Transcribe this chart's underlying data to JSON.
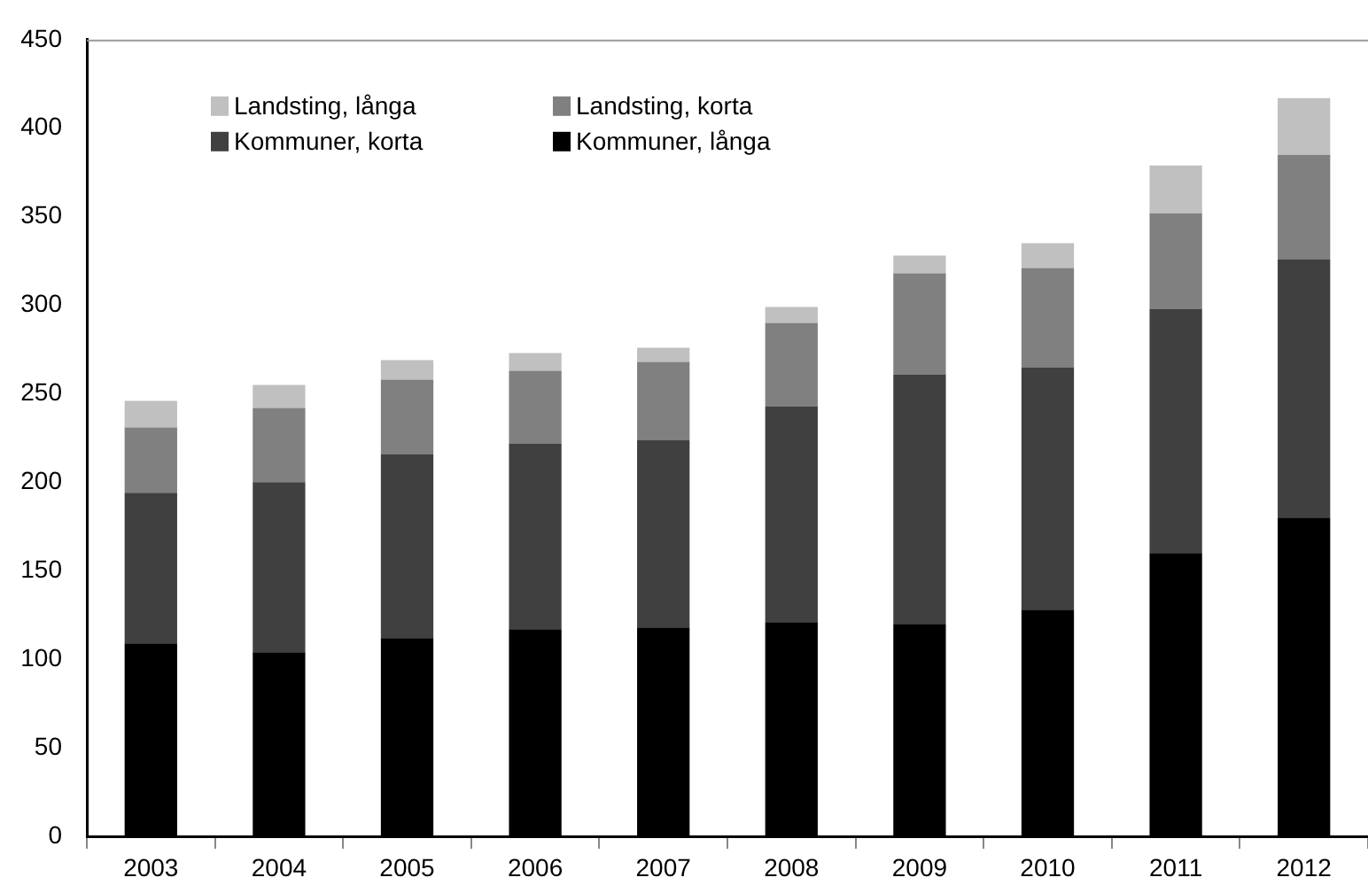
{
  "chart_data": {
    "type": "bar",
    "categories": [
      "2003",
      "2004",
      "2005",
      "2006",
      "2007",
      "2008",
      "2009",
      "2010",
      "2011",
      "2012"
    ],
    "stacked": true,
    "series": [
      {
        "name": "Kommuner, långa",
        "color": "#000000",
        "values": [
          109,
          104,
          112,
          117,
          118,
          121,
          120,
          128,
          160,
          180
        ]
      },
      {
        "name": "Kommuner, korta",
        "color": "#404040",
        "values": [
          85,
          96,
          104,
          105,
          106,
          122,
          141,
          137,
          138,
          146
        ]
      },
      {
        "name": "Landsting, korta",
        "color": "#808080",
        "values": [
          37,
          42,
          42,
          41,
          44,
          47,
          57,
          56,
          54,
          59
        ]
      },
      {
        "name": "Landsting, långa",
        "color": "#c0c0c0",
        "values": [
          15,
          13,
          11,
          10,
          8,
          9,
          10,
          14,
          27,
          32
        ]
      }
    ],
    "ylim": [
      0,
      450
    ],
    "yticks": [
      0,
      50,
      100,
      150,
      200,
      250,
      300,
      350,
      400,
      450
    ],
    "grid": false,
    "legend": "top left"
  }
}
